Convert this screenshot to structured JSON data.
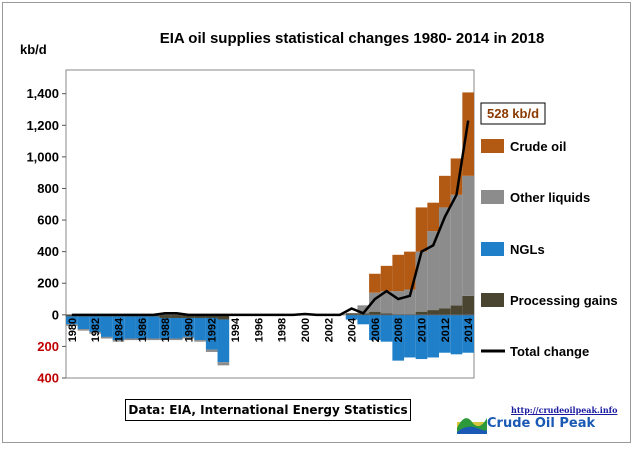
{
  "chart_data": {
    "type": "bar",
    "stacked": true,
    "title": "EIA oil supplies statistical changes 1980- 2014 in 2018",
    "ylabel": "kb/d",
    "ylim": [
      -400,
      1550
    ],
    "yticks": [
      -400,
      -200,
      0,
      200,
      400,
      600,
      800,
      1000,
      1200,
      1400
    ],
    "ytick_labels": [
      "400",
      "200",
      "0",
      "200",
      "400",
      "600",
      "800",
      "1,000",
      "1,200",
      "1,400"
    ],
    "x": [
      1980,
      1981,
      1982,
      1983,
      1984,
      1985,
      1986,
      1987,
      1988,
      1989,
      1990,
      1991,
      1992,
      1993,
      1994,
      1995,
      1996,
      1997,
      1998,
      1999,
      2000,
      2001,
      2002,
      2003,
      2004,
      2005,
      2006,
      2007,
      2008,
      2009,
      2010,
      2011,
      2012,
      2013,
      2014
    ],
    "xtick_labels": [
      "1980",
      "1982",
      "1984",
      "1986",
      "1988",
      "1990",
      "1992",
      "1994",
      "1996",
      "1998",
      "2000",
      "2002",
      "2004",
      "2006",
      "2008",
      "2010",
      "2012",
      "2014"
    ],
    "series": [
      {
        "name": "Crude oil",
        "color": "#b25a14",
        "values": [
          0,
          0,
          0,
          0,
          0,
          0,
          0,
          0,
          0,
          0,
          0,
          0,
          0,
          0,
          0,
          0,
          0,
          0,
          0,
          0,
          0,
          0,
          0,
          0,
          0,
          0,
          120,
          160,
          230,
          240,
          280,
          180,
          200,
          230,
          528
        ]
      },
      {
        "name": "Other liquids",
        "color": "#8c8c8c",
        "values": [
          -10,
          -10,
          -10,
          -10,
          -10,
          -10,
          -10,
          -10,
          -10,
          -10,
          -10,
          -10,
          -15,
          -20,
          0,
          0,
          0,
          0,
          0,
          0,
          0,
          0,
          0,
          0,
          0,
          50,
          120,
          140,
          150,
          160,
          380,
          500,
          640,
          700,
          760
        ]
      },
      {
        "name": "NGLs",
        "color": "#1f7fc8",
        "values": [
          -50,
          -80,
          -100,
          -130,
          -150,
          -140,
          -140,
          -140,
          -130,
          -130,
          -120,
          -140,
          -200,
          -270,
          0,
          0,
          0,
          0,
          0,
          0,
          0,
          0,
          0,
          0,
          -30,
          -60,
          -160,
          -170,
          -290,
          -270,
          -280,
          -270,
          -240,
          -250,
          -240
        ]
      },
      {
        "name": "Processing gains",
        "color": "#4a4530",
        "values": [
          -10,
          -10,
          -10,
          -10,
          -10,
          -10,
          -10,
          -10,
          -20,
          -20,
          -20,
          -20,
          -20,
          -30,
          0,
          0,
          0,
          0,
          0,
          0,
          0,
          0,
          0,
          0,
          10,
          10,
          20,
          10,
          0,
          0,
          20,
          30,
          40,
          60,
          120
        ]
      },
      {
        "name": "Total change",
        "type": "line",
        "color": "#000000",
        "values": [
          0,
          0,
          0,
          0,
          0,
          0,
          0,
          0,
          10,
          10,
          0,
          0,
          0,
          0,
          0,
          0,
          0,
          0,
          0,
          0,
          5,
          0,
          0,
          0,
          40,
          10,
          100,
          150,
          100,
          120,
          400,
          440,
          620,
          760,
          1230
        ]
      }
    ],
    "annotation": "528 kb/d",
    "grid": false,
    "legend_position": "right"
  },
  "source_note": "Data: EIA, International Energy Statistics",
  "logo": {
    "url_text": "http://crudeoilpeak.info",
    "name": "Crude Oil Peak"
  },
  "colors": {
    "positive_axis_text": "#000000",
    "negative_axis_text": "#c00000",
    "annotation_border": "#000000",
    "annotation_text": "#8b3a00"
  }
}
